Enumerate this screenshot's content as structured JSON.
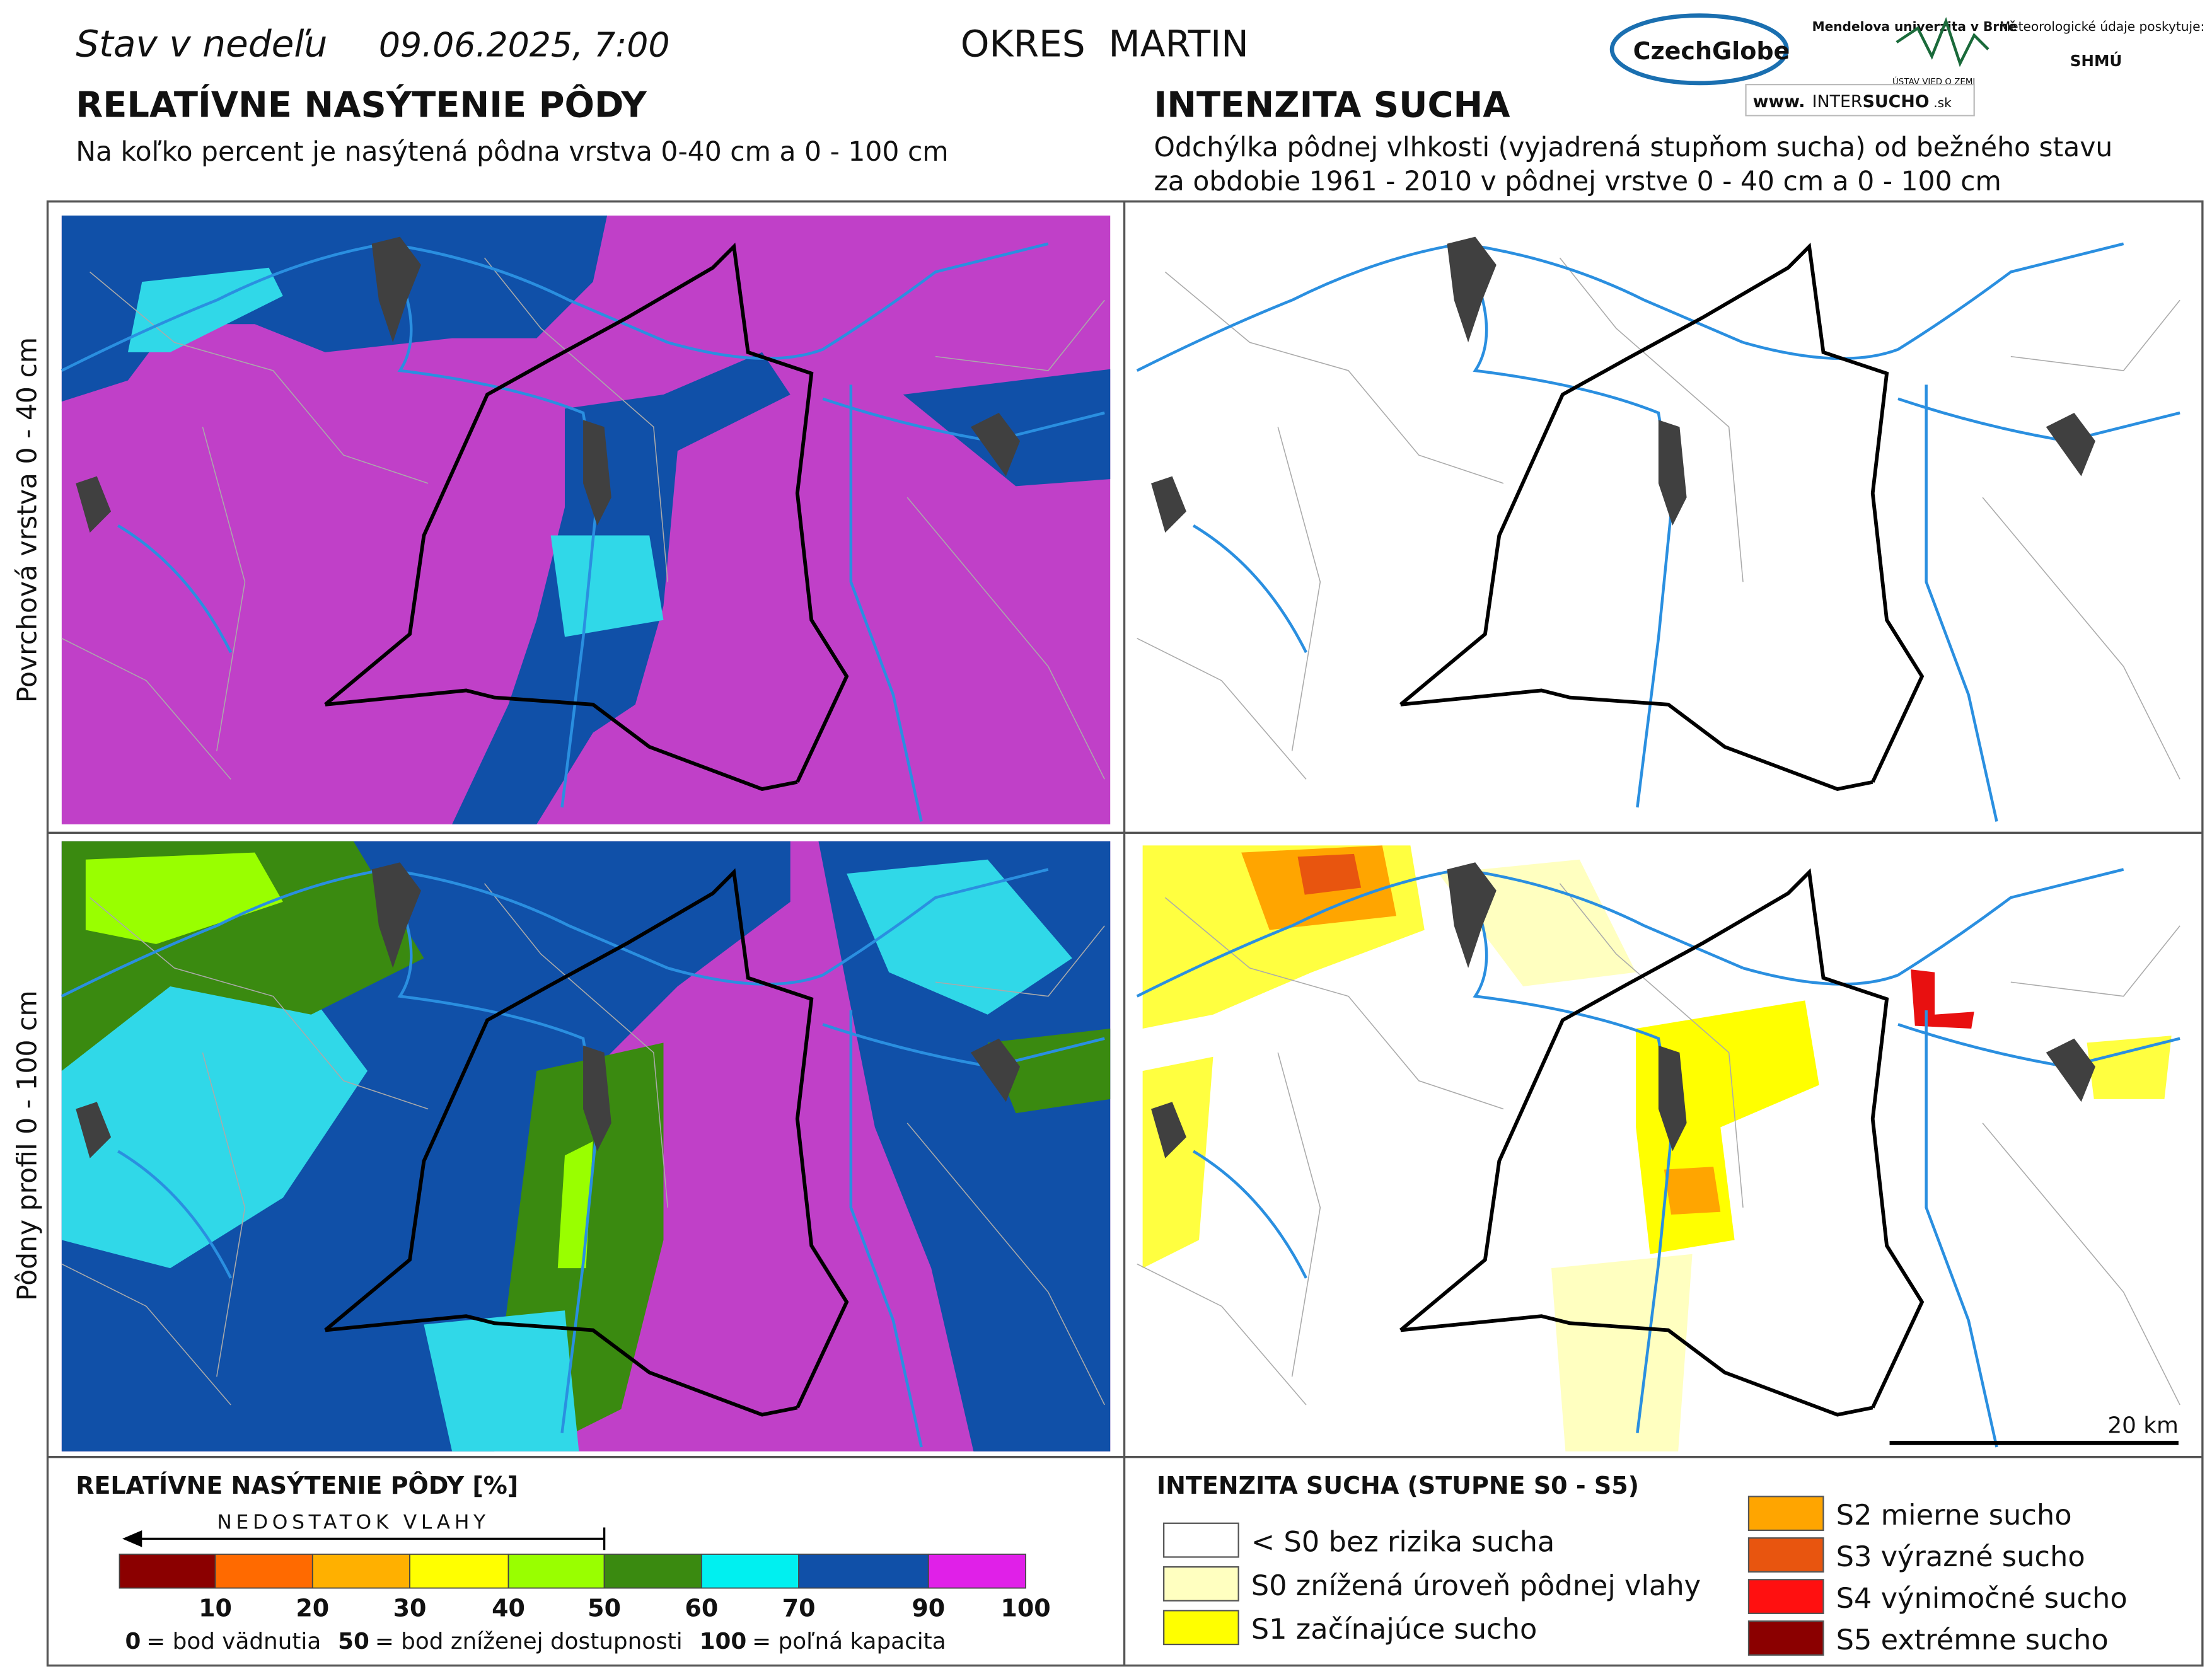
{
  "header": {
    "prefix": "Stav v nedeľu",
    "date": "09.06.2025, 7:00",
    "district": "OKRES  MARTIN",
    "logos": [
      "CzechGlobe",
      "Mendelova univerzita v Brně",
      "ÚSTAV VIED O ZEMI",
      "Meteorologické údaje poskytuje:",
      "SHMÚ"
    ],
    "website": [
      "www.",
      "INTER",
      "SUCHO",
      ".sk"
    ]
  },
  "left": {
    "title": "RELATÍVNE NASÝTENIE PÔDY",
    "subtitle": "Na koľko percent je nasýtená pôdna vrstva 0-40 cm a 0 - 100 cm"
  },
  "right": {
    "title": "INTENZITA SUCHA",
    "subtitle": [
      "Odchýlka pôdnej vlhkosti (vyjadrená stupňom sucha) od bežného stavu",
      "za obdobie 1961 - 2010 v pôdnej vrstve 0 - 40 cm a 0 - 100 cm"
    ]
  },
  "row_labels": [
    "Povrchová vrstva 0 - 40 cm",
    "Pôdny profil 0 - 100 cm"
  ],
  "scale_bar": "20 km",
  "legend_left": {
    "title": "RELATÍVNE NASÝTENIE PÔDY [%]",
    "arrow_label": "NEDOSTATOK VLAHY",
    "ticks": [
      10,
      20,
      30,
      40,
      50,
      60,
      70,
      90,
      100
    ],
    "colors": [
      "#8b0000",
      "#ff6a00",
      "#ffb000",
      "#ffff00",
      "#99ff00",
      "#3a8a10",
      "#00f0f0",
      "#1050a8",
      "#e020e8"
    ],
    "notes": [
      {
        "key": "0",
        "text": "= bod vädnutia"
      },
      {
        "key": "50",
        "text": "= bod zníženej dostupnosti"
      },
      {
        "key": "100",
        "text": "= poľná kapacita"
      }
    ]
  },
  "legend_right": {
    "title": "INTENZITA SUCHA (STUPNE S0 - S5)",
    "items": [
      {
        "label": "< S0 bez rizika sucha",
        "color": "#ffffff"
      },
      {
        "label": "S0 znížená úroveň pôdnej vlahy",
        "color": "#ffffc0"
      },
      {
        "label": "S1 začínajúce sucho",
        "color": "#ffff00"
      },
      {
        "label": "S2 mierne sucho",
        "color": "#ffa500"
      },
      {
        "label": "S3 výrazné sucho",
        "color": "#e8550f"
      },
      {
        "label": "S4 výnimočné sucho",
        "color": "#ff1010"
      },
      {
        "label": "S5 extrémne sucho",
        "color": "#8b0000"
      }
    ]
  }
}
